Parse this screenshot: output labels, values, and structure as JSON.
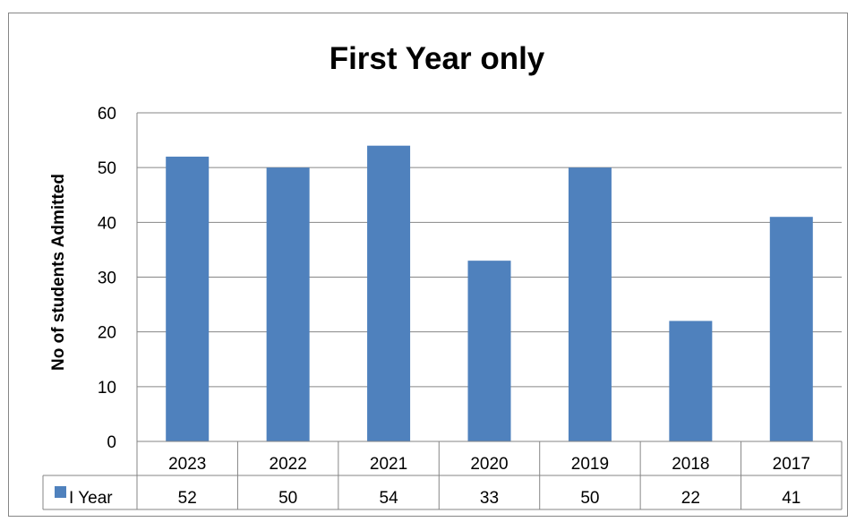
{
  "chart_data": {
    "type": "bar",
    "title": "First Year only",
    "xlabel": "",
    "ylabel": "No of students Admitted",
    "categories": [
      "2023",
      "2022",
      "2021",
      "2020",
      "2019",
      "2018",
      "2017"
    ],
    "series": [
      {
        "name": "I Year",
        "values": [
          52,
          50,
          54,
          33,
          50,
          22,
          41
        ],
        "color": "#4F81BD"
      }
    ],
    "ylim": [
      0,
      60
    ],
    "yticks": [
      "0",
      "10",
      "20",
      "30",
      "40",
      "50",
      "60"
    ],
    "grid": true,
    "legend": "data-table-row",
    "data_table": true
  }
}
